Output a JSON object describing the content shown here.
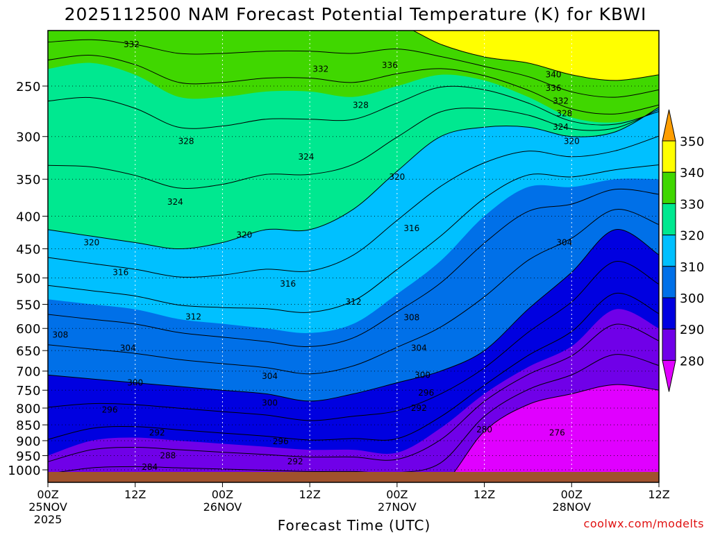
{
  "chart_data": {
    "type": "heatmap",
    "title": "2025112500 NAM Forecast Potential Temperature (K) for KBWI",
    "xlabel": "Forecast Time (UTC)",
    "ylabel": "",
    "credit": "coolwx.com/modelts",
    "x_range_hours": [
      0,
      84
    ],
    "y_range_hpa": [
      1030,
      210
    ],
    "x_ticks": [
      {
        "hour": 0,
        "label": "00Z",
        "date": "25NOV",
        "year": "2025"
      },
      {
        "hour": 12,
        "label": "12Z",
        "date": "",
        "year": ""
      },
      {
        "hour": 24,
        "label": "00Z",
        "date": "26NOV",
        "year": ""
      },
      {
        "hour": 36,
        "label": "12Z",
        "date": "",
        "year": ""
      },
      {
        "hour": 48,
        "label": "00Z",
        "date": "27NOV",
        "year": ""
      },
      {
        "hour": 60,
        "label": "12Z",
        "date": "",
        "year": ""
      },
      {
        "hour": 72,
        "label": "00Z",
        "date": "28NOV",
        "year": ""
      },
      {
        "hour": 84,
        "label": "12Z",
        "date": "",
        "year": ""
      }
    ],
    "y_ticks": [
      250,
      300,
      350,
      400,
      450,
      500,
      550,
      600,
      650,
      700,
      750,
      800,
      850,
      900,
      950,
      1000
    ],
    "colorbar": {
      "labels": [
        350,
        340,
        330,
        320,
        310,
        300,
        290,
        280
      ],
      "bins": [
        {
          "lo": 350,
          "hi": 999,
          "color": "#ff9e00"
        },
        {
          "lo": 340,
          "hi": 350,
          "color": "#ffff00"
        },
        {
          "lo": 330,
          "hi": 340,
          "color": "#40d700"
        },
        {
          "lo": 320,
          "hi": 330,
          "color": "#00e890"
        },
        {
          "lo": 310,
          "hi": 320,
          "color": "#00c0ff"
        },
        {
          "lo": 300,
          "hi": 310,
          "color": "#0070e8"
        },
        {
          "lo": 290,
          "hi": 300,
          "color": "#0000e0"
        },
        {
          "lo": 280,
          "hi": 290,
          "color": "#7000e8"
        },
        {
          "lo": 0,
          "hi": 280,
          "color": "#e000ff"
        }
      ]
    },
    "contour_levels": [
      276,
      280,
      284,
      288,
      292,
      296,
      300,
      304,
      308,
      312,
      316,
      320,
      324,
      328,
      332,
      336,
      340
    ],
    "isentrope_profiles": {
      "hours": [
        0,
        6,
        12,
        18,
        24,
        30,
        36,
        42,
        48,
        54,
        60,
        66,
        72,
        78,
        84
      ],
      "levels": [
        {
          "theta": 280,
          "p": [
            1060,
            1060,
            1060,
            1060,
            1060,
            1060,
            1060,
            1060,
            1060,
            1060,
            870,
            790,
            760,
            735,
            750
          ]
        },
        {
          "theta": 290,
          "p": [
            950,
            900,
            890,
            900,
            910,
            920,
            930,
            930,
            940,
            860,
            760,
            690,
            640,
            560,
            600
          ]
        },
        {
          "theta": 300,
          "p": [
            710,
            720,
            730,
            740,
            750,
            760,
            780,
            760,
            730,
            700,
            650,
            560,
            490,
            420,
            460
          ]
        },
        {
          "theta": 310,
          "p": [
            540,
            550,
            560,
            580,
            590,
            600,
            610,
            590,
            530,
            470,
            400,
            360,
            360,
            350,
            350
          ]
        },
        {
          "theta": 320,
          "p": [
            420,
            430,
            440,
            450,
            440,
            420,
            420,
            390,
            340,
            300,
            290,
            290,
            300,
            295,
            270
          ]
        },
        {
          "theta": 330,
          "p": [
            235,
            230,
            240,
            260,
            260,
            255,
            255,
            260,
            250,
            240,
            245,
            260,
            280,
            285,
            275
          ]
        },
        {
          "theta": 340,
          "p": [
            200,
            200,
            200,
            200,
            200,
            200,
            200,
            200,
            200,
            215,
            225,
            230,
            240,
            245,
            240
          ]
        },
        {
          "theta": 350,
          "p": [
            200,
            200,
            200,
            200,
            200,
            200,
            200,
            200,
            200,
            200,
            200,
            200,
            210,
            215,
            215
          ]
        }
      ]
    },
    "contour_labels": [
      {
        "value": 332,
        "hour": 11.5,
        "p": 215
      },
      {
        "value": 332,
        "hour": 37.5,
        "p": 235
      },
      {
        "value": 336,
        "hour": 47.0,
        "p": 232
      },
      {
        "value": 340,
        "hour": 69.5,
        "p": 240
      },
      {
        "value": 336,
        "hour": 69.5,
        "p": 252
      },
      {
        "value": 332,
        "hour": 70.5,
        "p": 264
      },
      {
        "value": 328,
        "hour": 71.0,
        "p": 276
      },
      {
        "value": 328,
        "hour": 43.0,
        "p": 268
      },
      {
        "value": 328,
        "hour": 19.0,
        "p": 305
      },
      {
        "value": 324,
        "hour": 70.5,
        "p": 290
      },
      {
        "value": 320,
        "hour": 72.0,
        "p": 305
      },
      {
        "value": 324,
        "hour": 35.5,
        "p": 323
      },
      {
        "value": 324,
        "hour": 17.5,
        "p": 380
      },
      {
        "value": 320,
        "hour": 48.0,
        "p": 347
      },
      {
        "value": 316,
        "hour": 50.0,
        "p": 418
      },
      {
        "value": 320,
        "hour": 27.0,
        "p": 428
      },
      {
        "value": 320,
        "hour": 6.0,
        "p": 440
      },
      {
        "value": 304,
        "hour": 71.0,
        "p": 440
      },
      {
        "value": 316,
        "hour": 10.0,
        "p": 490
      },
      {
        "value": 316,
        "hour": 33.0,
        "p": 511
      },
      {
        "value": 312,
        "hour": 42.0,
        "p": 545
      },
      {
        "value": 312,
        "hour": 20.0,
        "p": 575
      },
      {
        "value": 308,
        "hour": 50.0,
        "p": 577
      },
      {
        "value": 308,
        "hour": 1.7,
        "p": 614
      },
      {
        "value": 304,
        "hour": 11.0,
        "p": 644
      },
      {
        "value": 304,
        "hour": 51.0,
        "p": 644
      },
      {
        "value": 304,
        "hour": 30.5,
        "p": 713
      },
      {
        "value": 300,
        "hour": 12.0,
        "p": 730
      },
      {
        "value": 300,
        "hour": 51.5,
        "p": 710
      },
      {
        "value": 296,
        "hour": 52.0,
        "p": 757
      },
      {
        "value": 300,
        "hour": 30.5,
        "p": 785
      },
      {
        "value": 296,
        "hour": 8.5,
        "p": 805
      },
      {
        "value": 292,
        "hour": 51.0,
        "p": 800
      },
      {
        "value": 292,
        "hour": 15.0,
        "p": 875
      },
      {
        "value": 280,
        "hour": 60.0,
        "p": 865
      },
      {
        "value": 276,
        "hour": 70.0,
        "p": 875
      },
      {
        "value": 296,
        "hour": 32.0,
        "p": 902
      },
      {
        "value": 288,
        "hour": 16.5,
        "p": 950
      },
      {
        "value": 292,
        "hour": 34.0,
        "p": 970
      },
      {
        "value": 284,
        "hour": 14.0,
        "p": 990
      }
    ],
    "ground_color": "#a0522d"
  }
}
